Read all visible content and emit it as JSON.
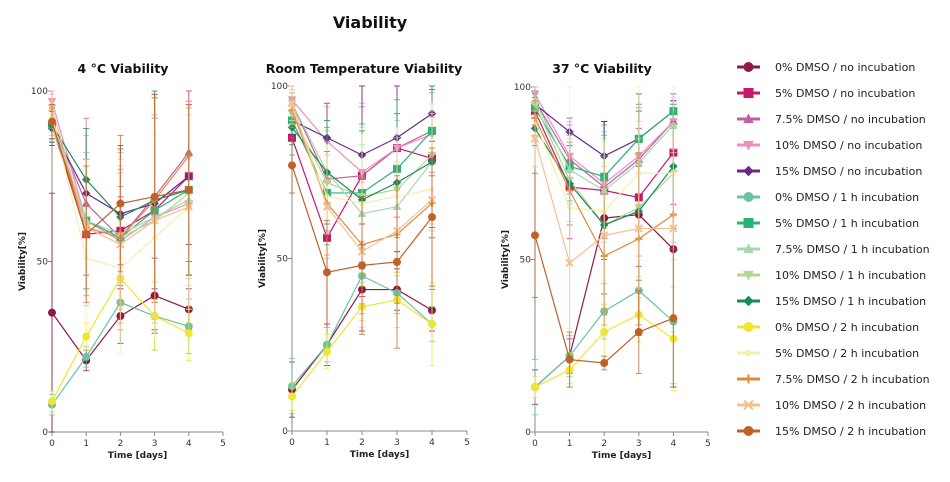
{
  "title": "Viability",
  "chart_data": [
    {
      "type": "line",
      "title": "4 °C Viability",
      "xlabel": "Time [days]",
      "ylabel": "Viability[%]",
      "xlim": [
        0,
        5
      ],
      "ylim": [
        0,
        100
      ],
      "xticks": [
        "0",
        "1",
        "2",
        "3",
        "4",
        "5"
      ],
      "yticks": [
        "0",
        "50",
        "100"
      ],
      "x": [
        0,
        1,
        2,
        3,
        4
      ],
      "series": [
        {
          "name": "0% DMSO / no incubation",
          "values": [
            35,
            21,
            34,
            40,
            36
          ],
          "error": [
            35,
            3,
            8,
            11,
            6
          ]
        },
        {
          "name": "5% DMSO / no incubation",
          "values": [
            90,
            58,
            59,
            65,
            75
          ],
          "error": [
            5,
            12,
            10,
            35,
            25
          ]
        },
        {
          "name": "7.5% DMSO / no incubation",
          "values": [
            91,
            67,
            57,
            69,
            82
          ],
          "error": [
            5,
            25,
            15,
            30,
            15
          ]
        },
        {
          "name": "10% DMSO / no incubation",
          "values": [
            97,
            62,
            56,
            63,
            67
          ],
          "error": [
            3,
            25,
            20,
            30,
            30
          ]
        },
        {
          "name": "15% DMSO / no incubation",
          "values": [
            89,
            70,
            64,
            67,
            75
          ],
          "error": [
            5,
            10,
            20,
            25,
            20
          ]
        },
        {
          "name": "0% DMSO / 1 h incubation",
          "values": [
            8,
            22,
            38,
            34,
            31
          ],
          "error": [
            3,
            3,
            8,
            10,
            8
          ]
        },
        {
          "name": "5% DMSO / 1 h incubation",
          "values": [
            90,
            62,
            57,
            65,
            71
          ],
          "error": [
            5,
            20,
            20,
            35,
            25
          ]
        },
        {
          "name": "7.5% DMSO / 1 h incubation",
          "values": [
            92,
            62,
            58,
            63,
            68
          ],
          "error": [
            5,
            20,
            20,
            30,
            25
          ]
        },
        {
          "name": "10% DMSO / 1 h incubation",
          "values": [
            90,
            60,
            57,
            62,
            70
          ],
          "error": [
            5,
            20,
            20,
            30,
            25
          ]
        },
        {
          "name": "15% DMSO / 1 h incubation",
          "values": [
            90,
            74,
            63,
            68,
            71
          ],
          "error": [
            5,
            15,
            20,
            30,
            25
          ]
        },
        {
          "name": "0% DMSO / 2 h incubation",
          "values": [
            9,
            28,
            45,
            34,
            29
          ],
          "error": [
            3,
            4,
            6,
            10,
            8
          ]
        },
        {
          "name": "5% DMSO / 2 h incubation",
          "values": [
            93,
            51,
            48,
            57,
            66
          ],
          "error": [
            5,
            20,
            25,
            30,
            30
          ]
        },
        {
          "name": "7.5% DMSO / 2 h incubation",
          "values": [
            91,
            60,
            57,
            68,
            81
          ],
          "error": [
            5,
            20,
            25,
            30,
            15
          ]
        },
        {
          "name": "10% DMSO / 2 h incubation",
          "values": [
            95,
            60,
            55,
            62,
            66
          ],
          "error": [
            4,
            20,
            25,
            30,
            30
          ]
        },
        {
          "name": "15% DMSO / 2 h incubation",
          "values": [
            91,
            58,
            67,
            69,
            71
          ],
          "error": [
            5,
            20,
            20,
            30,
            25
          ]
        }
      ]
    },
    {
      "type": "line",
      "title": "Room Temperature Viability",
      "xlabel": "Time [days]",
      "ylabel": "Viability[%]",
      "xlim": [
        0,
        5
      ],
      "ylim": [
        0,
        100
      ],
      "xticks": [
        "0",
        "1",
        "2",
        "3",
        "4",
        "5"
      ],
      "yticks": [
        "0",
        "50",
        "100"
      ],
      "x": [
        0,
        1,
        2,
        3,
        4
      ],
      "series": [
        {
          "name": "0% DMSO / no incubation",
          "values": [
            12,
            25,
            41,
            41,
            35
          ],
          "error": [
            8,
            6,
            12,
            6,
            6
          ]
        },
        {
          "name": "5% DMSO / no incubation",
          "values": [
            85,
            56,
            74,
            82,
            79
          ],
          "error": [
            8,
            25,
            35,
            30,
            20
          ]
        },
        {
          "name": "7.5% DMSO / no incubation",
          "values": [
            95,
            73,
            74,
            82,
            87
          ],
          "error": [
            4,
            15,
            20,
            20,
            12
          ]
        },
        {
          "name": "10% DMSO / no incubation",
          "values": [
            96,
            84,
            75,
            82,
            86
          ],
          "error": [
            4,
            10,
            20,
            20,
            12
          ]
        },
        {
          "name": "15% DMSO / no incubation",
          "values": [
            90,
            85,
            80,
            85,
            92
          ],
          "error": [
            4,
            10,
            20,
            15,
            8
          ]
        },
        {
          "name": "0% DMSO / 1 h incubation",
          "values": [
            13,
            25,
            45,
            40,
            31
          ],
          "error": [
            8,
            5,
            8,
            6,
            5
          ]
        },
        {
          "name": "5% DMSO / 1 h incubation",
          "values": [
            90,
            69,
            69,
            76,
            87
          ],
          "error": [
            10,
            15,
            20,
            20,
            13
          ]
        },
        {
          "name": "7.5% DMSO / 1 h incubation",
          "values": [
            95,
            75,
            63,
            65,
            78
          ],
          "error": [
            5,
            15,
            20,
            20,
            20
          ]
        },
        {
          "name": "10% DMSO / 1 h incubation",
          "values": [
            92,
            72,
            68,
            70,
            80
          ],
          "error": [
            5,
            15,
            20,
            20,
            20
          ]
        },
        {
          "name": "15% DMSO / 1 h incubation",
          "values": [
            88,
            75,
            67,
            72,
            78
          ],
          "error": [
            5,
            15,
            20,
            20,
            22
          ]
        },
        {
          "name": "0% DMSO / 2 h incubation",
          "values": [
            10,
            23,
            36,
            38,
            31
          ],
          "error": [
            4,
            5,
            6,
            8,
            12
          ]
        },
        {
          "name": "5% DMSO / 2 h incubation",
          "values": [
            94,
            68,
            66,
            68,
            70
          ],
          "error": [
            5,
            15,
            20,
            20,
            25
          ]
        },
        {
          "name": "7.5% DMSO / 2 h incubation",
          "values": [
            93,
            66,
            54,
            57,
            66
          ],
          "error": [
            5,
            15,
            20,
            20,
            25
          ]
        },
        {
          "name": "10% DMSO / 2 h incubation",
          "values": [
            95,
            65,
            52,
            58,
            67
          ],
          "error": [
            5,
            15,
            20,
            20,
            25
          ]
        },
        {
          "name": "15% DMSO / 2 h incubation",
          "values": [
            77,
            46,
            48,
            49,
            62
          ],
          "error": [
            8,
            15,
            20,
            25,
            20
          ]
        }
      ]
    },
    {
      "type": "line",
      "title": "37 °C Viability",
      "xlabel": "Time [days]",
      "ylabel": "Viability[%]",
      "xlim": [
        0,
        5
      ],
      "ylim": [
        0,
        100
      ],
      "xticks": [
        "0",
        "1",
        "2",
        "3",
        "4",
        "5"
      ],
      "yticks": [
        "0",
        "50",
        "100"
      ],
      "x": [
        0,
        1,
        2,
        3,
        4
      ],
      "series": [
        {
          "name": "0% DMSO / no incubation",
          "values": [
            13,
            22,
            62,
            63,
            53
          ],
          "error": [
            5,
            5,
            28,
            35,
            40
          ]
        },
        {
          "name": "5% DMSO / no incubation",
          "values": [
            93,
            71,
            70,
            68,
            81
          ],
          "error": [
            4,
            15,
            20,
            20,
            15
          ]
        },
        {
          "name": "7.5% DMSO / no incubation",
          "values": [
            96,
            79,
            71,
            79,
            90
          ],
          "error": [
            3,
            10,
            15,
            15,
            8
          ]
        },
        {
          "name": "10% DMSO / no incubation",
          "values": [
            98,
            80,
            72,
            80,
            90
          ],
          "error": [
            3,
            10,
            15,
            15,
            8
          ]
        },
        {
          "name": "15% DMSO / no incubation",
          "values": [
            95,
            87,
            80,
            85,
            93
          ],
          "error": [
            3,
            4,
            10,
            8,
            3
          ]
        },
        {
          "name": "0% DMSO / 1 h incubation",
          "values": [
            13,
            22,
            35,
            41,
            32
          ],
          "error": [
            8,
            6,
            8,
            10,
            18
          ]
        },
        {
          "name": "5% DMSO / 1 h incubation",
          "values": [
            94,
            77,
            74,
            85,
            93
          ],
          "error": [
            3,
            10,
            15,
            10,
            5
          ]
        },
        {
          "name": "7.5% DMSO / 1 h incubation",
          "values": [
            96,
            76,
            70,
            78,
            89
          ],
          "error": [
            3,
            10,
            15,
            12,
            8
          ]
        },
        {
          "name": "10% DMSO / 1 h incubation",
          "values": [
            95,
            73,
            60,
            65,
            75
          ],
          "error": [
            3,
            12,
            20,
            20,
            20
          ]
        },
        {
          "name": "15% DMSO / 1 h incubation",
          "values": [
            88,
            72,
            60,
            64,
            77
          ],
          "error": [
            5,
            12,
            20,
            20,
            18
          ]
        },
        {
          "name": "0% DMSO / 2 h incubation",
          "values": [
            13,
            18,
            29,
            34,
            27
          ],
          "error": [
            3,
            5,
            8,
            8,
            15
          ]
        },
        {
          "name": "5% DMSO / 2 h incubation",
          "values": [
            90,
            65,
            64,
            75,
            75
          ],
          "error": [
            5,
            35,
            20,
            25,
            25
          ]
        },
        {
          "name": "7.5% DMSO / 2 h incubation",
          "values": [
            91,
            70,
            51,
            56,
            63
          ],
          "error": [
            5,
            10,
            20,
            25,
            30
          ]
        },
        {
          "name": "10% DMSO / 2 h incubation",
          "values": [
            85,
            49,
            57,
            59,
            59
          ],
          "error": [
            8,
            35,
            20,
            20,
            30
          ]
        },
        {
          "name": "15% DMSO / 2 h incubation",
          "values": [
            57,
            21,
            20,
            29,
            33
          ],
          "error": [
            18,
            8,
            2,
            12,
            20
          ]
        }
      ]
    }
  ],
  "legend": {
    "placement": "right",
    "items": [
      {
        "label": "0% DMSO / no incubation",
        "color": "#8b1a4a",
        "marker": "circle"
      },
      {
        "label": "5% DMSO / no incubation",
        "color": "#c8186a",
        "marker": "square"
      },
      {
        "label": "7.5% DMSO / no incubation",
        "color": "#c062a0",
        "marker": "triangle-up"
      },
      {
        "label": "10% DMSO / no incubation",
        "color": "#ee8fbf",
        "marker": "triangle-down"
      },
      {
        "label": "15% DMSO / no incubation",
        "color": "#6a2a8a",
        "marker": "diamond"
      },
      {
        "label": "0% DMSO / 1 h incubation",
        "color": "#6cc3a0",
        "marker": "circle"
      },
      {
        "label": "5% DMSO / 1 h incubation",
        "color": "#2bb377",
        "marker": "square"
      },
      {
        "label": "7.5% DMSO / 1 h incubation",
        "color": "#a8d8b0",
        "marker": "triangle-up"
      },
      {
        "label": "10% DMSO / 1 h incubation",
        "color": "#b0d890",
        "marker": "triangle-down"
      },
      {
        "label": "15% DMSO / 1 h incubation",
        "color": "#1a8a5a",
        "marker": "diamond"
      },
      {
        "label": "0% DMSO / 2 h incubation",
        "color": "#efe632",
        "marker": "circle"
      },
      {
        "label": "5% DMSO / 2 h incubation",
        "color": "#f4efb0",
        "marker": "star"
      },
      {
        "label": "7.5% DMSO / 2 h incubation",
        "color": "#e08a40",
        "marker": "plus"
      },
      {
        "label": "10% DMSO / 2 h incubation",
        "color": "#f5c090",
        "marker": "cross"
      },
      {
        "label": "15% DMSO / 2 h incubation",
        "color": "#c0602a",
        "marker": "circle"
      }
    ]
  }
}
